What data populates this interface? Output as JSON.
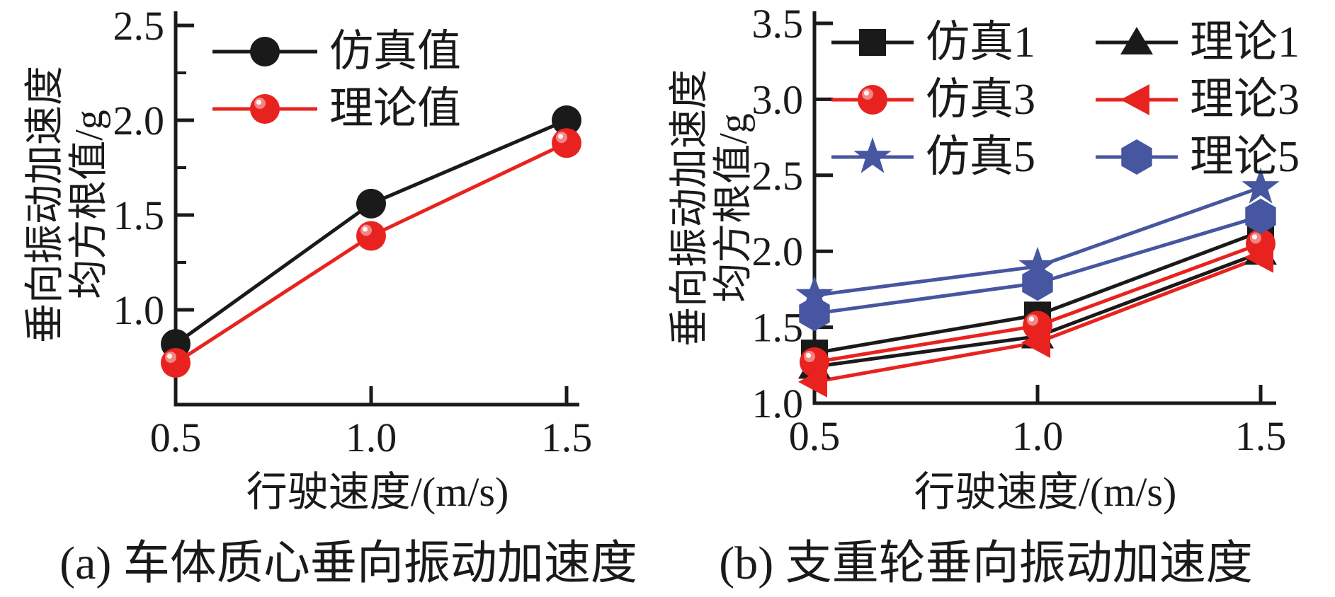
{
  "figure": {
    "background": "#ffffff",
    "colors": {
      "black": "#1a1a1a",
      "red": "#e8231f",
      "blue": "#4656a0"
    }
  },
  "chart_data": [
    {
      "id": "a",
      "type": "line",
      "caption": "(a) 车体质心垂向振动加速度",
      "xlabel": "行驶速度/(m/s)",
      "ylabel": "垂向振动加速度均方根值/g",
      "ylabel_line1": "垂向振动加速度",
      "ylabel_line2": "均方根值/g",
      "x": [
        0.5,
        1.0,
        1.5
      ],
      "xticks": [
        0.5,
        1.0,
        1.5
      ],
      "yticks": [
        2.5,
        2.0,
        1.5,
        1.0
      ],
      "yticks_minor": [
        2.25,
        1.75,
        1.25,
        0.75
      ],
      "xlim": [
        0.5,
        1.53
      ],
      "ylim": [
        0.5,
        2.57
      ],
      "grid": false,
      "legend_position": "upper-left-inside",
      "series": [
        {
          "name": "仿真值",
          "color": "#1a1a1a",
          "marker": "circle",
          "values": [
            0.82,
            1.56,
            2.0
          ]
        },
        {
          "name": "理论值",
          "color": "#e8231f",
          "marker": "circle-gloss",
          "values": [
            0.72,
            1.39,
            1.88
          ]
        }
      ],
      "legend_rows": [
        [
          0
        ],
        [
          1
        ]
      ]
    },
    {
      "id": "b",
      "type": "line",
      "caption": "(b) 支重轮垂向振动加速度",
      "xlabel": "行驶速度/(m/s)",
      "ylabel": "垂向振动加速度均方根值/g",
      "ylabel_line1": "垂向振动加速度",
      "ylabel_line2": "均方根值/g",
      "x": [
        0.5,
        1.0,
        1.5
      ],
      "xticks": [
        0.5,
        1.0,
        1.5
      ],
      "yticks": [
        3.5,
        3.0,
        2.5,
        2.0,
        1.5,
        1.0
      ],
      "yticks_minor": [],
      "xlim": [
        0.5,
        1.53
      ],
      "ylim": [
        1.0,
        3.58
      ],
      "grid": false,
      "legend_position": "upper-inside-two-columns",
      "series": [
        {
          "name": "仿真1",
          "color": "#1a1a1a",
          "marker": "square",
          "values": [
            1.33,
            1.58,
            2.13
          ]
        },
        {
          "name": "理论1",
          "color": "#1a1a1a",
          "marker": "triangle-up",
          "values": [
            1.24,
            1.44,
            1.99
          ]
        },
        {
          "name": "仿真3",
          "color": "#e8231f",
          "marker": "circle-gloss",
          "values": [
            1.27,
            1.51,
            2.05
          ]
        },
        {
          "name": "理论3",
          "color": "#e8231f",
          "marker": "triangle-left",
          "values": [
            1.14,
            1.4,
            1.96
          ]
        },
        {
          "name": "仿真5",
          "color": "#4656a0",
          "marker": "star",
          "values": [
            1.71,
            1.9,
            2.42
          ]
        },
        {
          "name": "理论5",
          "color": "#4656a0",
          "marker": "hexagon",
          "values": [
            1.59,
            1.79,
            2.23
          ]
        }
      ],
      "legend_rows": [
        [
          0,
          1
        ],
        [
          2,
          3
        ],
        [
          4,
          5
        ]
      ]
    }
  ]
}
